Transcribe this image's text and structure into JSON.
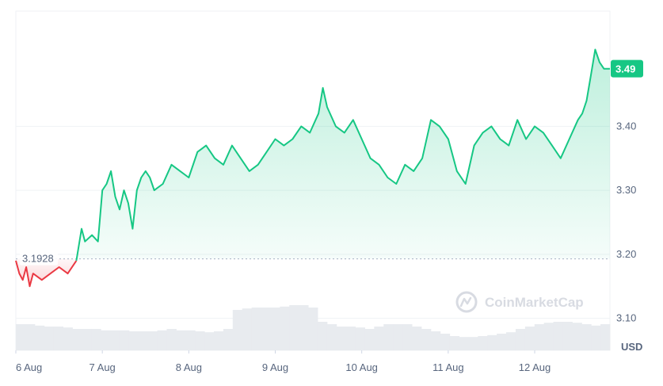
{
  "chart_data": {
    "type": "area",
    "unit_label": "USD",
    "y_tick_labels": [
      "3.10",
      "3.20",
      "3.30",
      "3.40"
    ],
    "y_ticks": [
      3.1,
      3.2,
      3.3,
      3.4
    ],
    "ylim": [
      3.05,
      3.58
    ],
    "x_labels": [
      "6 Aug",
      "7 Aug",
      "8 Aug",
      "9 Aug",
      "10 Aug",
      "11 Aug",
      "12 Aug"
    ],
    "xlim": [
      0,
      6.87
    ],
    "reference_value": 3.1928,
    "reference_label": "3.1928",
    "current_value": 3.49,
    "current_label": "3.49",
    "watermark": "CoinMarketCap",
    "colors": {
      "up": "#16c784",
      "down": "#ea3943",
      "grid": "#eff2f5",
      "volume": "#e8ebef",
      "badge": "#16c784"
    },
    "series": [
      {
        "x": [
          0,
          0.04,
          0.08,
          0.12,
          0.16,
          0.2,
          0.3,
          0.4,
          0.5,
          0.6,
          0.7,
          0.76,
          0.8,
          0.88,
          0.95,
          1.0,
          1.05,
          1.1,
          1.15,
          1.2,
          1.25,
          1.3,
          1.35,
          1.4,
          1.45,
          1.5,
          1.55,
          1.6,
          1.7,
          1.8,
          1.9,
          2.0,
          2.1,
          2.2,
          2.3,
          2.4,
          2.5,
          2.6,
          2.7,
          2.8,
          2.9,
          3.0,
          3.1,
          3.2,
          3.3,
          3.4,
          3.5,
          3.55,
          3.6,
          3.7,
          3.8,
          3.9,
          4.0,
          4.1,
          4.2,
          4.3,
          4.4,
          4.5,
          4.6,
          4.7,
          4.8,
          4.9,
          5.0,
          5.1,
          5.2,
          5.3,
          5.4,
          5.5,
          5.6,
          5.7,
          5.8,
          5.9,
          6.0,
          6.1,
          6.2,
          6.3,
          6.4,
          6.5,
          6.55,
          6.6,
          6.65,
          6.7,
          6.75,
          6.8,
          6.87
        ],
        "y": [
          3.19,
          3.17,
          3.16,
          3.18,
          3.15,
          3.17,
          3.16,
          3.17,
          3.18,
          3.17,
          3.19,
          3.24,
          3.22,
          3.23,
          3.22,
          3.3,
          3.31,
          3.33,
          3.29,
          3.27,
          3.3,
          3.28,
          3.24,
          3.3,
          3.32,
          3.33,
          3.32,
          3.3,
          3.31,
          3.34,
          3.33,
          3.32,
          3.36,
          3.37,
          3.35,
          3.34,
          3.37,
          3.35,
          3.33,
          3.34,
          3.36,
          3.38,
          3.37,
          3.38,
          3.4,
          3.39,
          3.42,
          3.46,
          3.43,
          3.4,
          3.39,
          3.41,
          3.38,
          3.35,
          3.34,
          3.32,
          3.31,
          3.34,
          3.33,
          3.35,
          3.41,
          3.4,
          3.38,
          3.33,
          3.31,
          3.37,
          3.39,
          3.4,
          3.38,
          3.37,
          3.41,
          3.38,
          3.4,
          3.39,
          3.37,
          3.35,
          3.38,
          3.41,
          3.42,
          3.44,
          3.48,
          3.52,
          3.5,
          3.49,
          3.49
        ]
      }
    ]
  }
}
